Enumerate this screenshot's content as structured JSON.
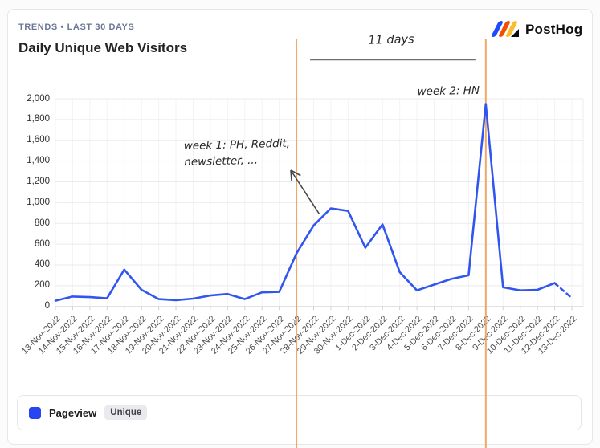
{
  "header": {
    "eyebrow": "TRENDS • LAST 30 DAYS",
    "title": "Daily Unique Web Visitors"
  },
  "brand": {
    "name": "PostHog"
  },
  "legend": {
    "series_label": "Pageview",
    "badge_label": "Unique"
  },
  "chart_data": {
    "type": "line",
    "title": "Daily Unique Web Visitors",
    "x": [
      "13-Nov-2022",
      "14-Nov-2022",
      "15-Nov-2022",
      "16-Nov-2022",
      "17-Nov-2022",
      "18-Nov-2022",
      "19-Nov-2022",
      "20-Nov-2022",
      "21-Nov-2022",
      "22-Nov-2022",
      "23-Nov-2022",
      "24-Nov-2022",
      "25-Nov-2022",
      "26-Nov-2022",
      "27-Nov-2022",
      "28-Nov-2022",
      "29-Nov-2022",
      "30-Nov-2022",
      "1-Dec-2022",
      "2-Dec-2022",
      "3-Dec-2022",
      "4-Dec-2022",
      "5-Dec-2022",
      "6-Dec-2022",
      "7-Dec-2022",
      "8-Dec-2022",
      "9-Dec-2022",
      "10-Dec-2022",
      "11-Dec-2022",
      "12-Dec-2022",
      "13-Dec-2022"
    ],
    "series": [
      {
        "name": "Pageview (Unique)",
        "color": "#3156f0",
        "values": [
          55,
          95,
          90,
          78,
          355,
          160,
          70,
          60,
          75,
          105,
          120,
          70,
          135,
          140,
          510,
          780,
          945,
          920,
          565,
          790,
          330,
          155,
          210,
          265,
          300,
          1950,
          185,
          155,
          160,
          225,
          80
        ],
        "last_segment_style": "dashed"
      }
    ],
    "ylim": [
      0,
      2000
    ],
    "ytick_interval": 200,
    "ytick_labels": [
      "0",
      "200",
      "400",
      "600",
      "800",
      "1,000",
      "1,200",
      "1,400",
      "1,600",
      "1,800",
      "2,000"
    ],
    "grid": "horizontal",
    "legend_position": "bottom",
    "annotations": {
      "vline_color": "#f09a4e",
      "vline1": {
        "date": "27-Nov-2022",
        "index": 14
      },
      "vline2": {
        "date": "8-Dec-2022",
        "index": 25
      },
      "span_label": "11 days",
      "week1_line1": "week 1: PH, Reddit,",
      "week1_line2": "newsletter, ...",
      "week2_label": "week 2: HN"
    }
  }
}
